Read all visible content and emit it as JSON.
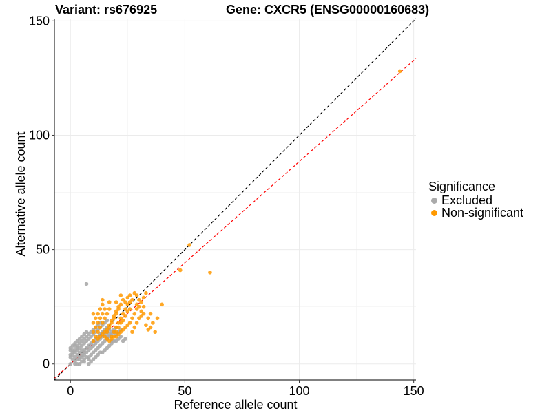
{
  "chart_data": {
    "type": "scatter",
    "title_left": "Variant: rs676925",
    "title_right": "Gene: CXCR5 (ENSG00000160683)",
    "xlabel": "Reference allele count",
    "ylabel": "Alternative allele count",
    "xlim": [
      -7,
      151
    ],
    "ylim": [
      -7,
      151
    ],
    "xticks": [
      0,
      50,
      100,
      150
    ],
    "yticks": [
      0,
      50,
      100,
      150
    ],
    "grid": true,
    "reference_lines": [
      {
        "name": "identity",
        "slope": 1,
        "intercept": 0,
        "color": "#000000",
        "dash": true
      },
      {
        "name": "ratio-fit",
        "slope": 0.885,
        "intercept": 0,
        "color": "#ff0000",
        "dash": true
      }
    ],
    "legend": {
      "title": "Significance",
      "position": "right",
      "entries": [
        {
          "label": "Excluded",
          "color": "#aaaaaa"
        },
        {
          "label": "Non-significant",
          "color": "#ff9900"
        }
      ]
    },
    "series": [
      {
        "name": "Excluded",
        "color": "#aaaaaa",
        "points": [
          [
            0,
            0
          ],
          [
            1,
            2
          ],
          [
            2,
            1
          ],
          [
            0,
            3
          ],
          [
            3,
            0
          ],
          [
            1,
            4
          ],
          [
            4,
            2
          ],
          [
            2,
            5
          ],
          [
            5,
            3
          ],
          [
            3,
            6
          ],
          [
            6,
            4
          ],
          [
            4,
            7
          ],
          [
            7,
            5
          ],
          [
            5,
            8
          ],
          [
            8,
            6
          ],
          [
            6,
            9
          ],
          [
            9,
            7
          ],
          [
            7,
            10
          ],
          [
            10,
            8
          ],
          [
            8,
            11
          ],
          [
            11,
            9
          ],
          [
            9,
            12
          ],
          [
            12,
            10
          ],
          [
            10,
            13
          ],
          [
            13,
            11
          ],
          [
            11,
            14
          ],
          [
            14,
            12
          ],
          [
            12,
            15
          ],
          [
            15,
            13
          ],
          [
            13,
            16
          ],
          [
            16,
            12
          ],
          [
            14,
            17
          ],
          [
            17,
            13
          ],
          [
            15,
            18
          ],
          [
            18,
            14
          ],
          [
            16,
            19
          ],
          [
            19,
            15
          ],
          [
            20,
            16
          ],
          [
            2,
            3
          ],
          [
            3,
            2
          ],
          [
            4,
            5
          ],
          [
            5,
            4
          ],
          [
            6,
            6
          ],
          [
            7,
            7
          ],
          [
            8,
            8
          ],
          [
            3,
            8
          ],
          [
            8,
            3
          ],
          [
            6,
            11
          ],
          [
            11,
            6
          ],
          [
            9,
            4
          ],
          [
            4,
            9
          ],
          [
            12,
            7
          ],
          [
            7,
            12
          ],
          [
            10,
            5
          ],
          [
            5,
            10
          ],
          [
            1,
            6
          ],
          [
            6,
            1
          ],
          [
            2,
            8
          ],
          [
            8,
            2
          ],
          [
            9,
            9
          ],
          [
            10,
            10
          ],
          [
            11,
            11
          ],
          [
            12,
            12
          ],
          [
            13,
            8
          ],
          [
            8,
            13
          ],
          [
            14,
            9
          ],
          [
            9,
            14
          ],
          [
            15,
            10
          ],
          [
            10,
            15
          ],
          [
            16,
            11
          ],
          [
            11,
            16
          ],
          [
            17,
            12
          ],
          [
            12,
            17
          ],
          [
            18,
            13
          ],
          [
            13,
            18
          ],
          [
            19,
            14
          ],
          [
            20,
            10
          ],
          [
            21,
            11
          ],
          [
            22,
            12
          ],
          [
            3,
            4
          ],
          [
            4,
            3
          ],
          [
            5,
            6
          ],
          [
            6,
            5
          ],
          [
            7,
            3
          ],
          [
            3,
            7
          ],
          [
            2,
            6
          ],
          [
            6,
            2
          ],
          [
            1,
            5
          ],
          [
            5,
            1
          ],
          [
            0,
            4
          ],
          [
            4,
            0
          ],
          [
            0,
            6
          ],
          [
            2,
            0
          ],
          [
            7,
            35
          ],
          [
            14,
            5
          ],
          [
            15,
            6
          ],
          [
            16,
            7
          ],
          [
            17,
            8
          ],
          [
            18,
            9
          ],
          [
            19,
            10
          ],
          [
            12,
            4
          ],
          [
            13,
            5
          ],
          [
            11,
            3
          ],
          [
            10,
            2
          ],
          [
            9,
            1
          ],
          [
            8,
            0
          ],
          [
            5,
            12
          ],
          [
            6,
            13
          ],
          [
            7,
            14
          ],
          [
            4,
            11
          ],
          [
            3,
            10
          ],
          [
            2,
            9
          ],
          [
            1,
            8
          ],
          [
            0,
            7
          ],
          [
            14,
            14
          ],
          [
            15,
            15
          ],
          [
            16,
            16
          ],
          [
            13,
            13
          ],
          [
            20,
            13
          ],
          [
            21,
            14
          ],
          [
            22,
            15
          ],
          [
            23,
            10
          ],
          [
            24,
            11
          ],
          [
            18,
            10
          ],
          [
            17,
            15
          ],
          [
            16,
            14
          ]
        ]
      },
      {
        "name": "Non-significant",
        "color": "#ff9900",
        "points": [
          [
            10,
            10
          ],
          [
            11,
            12
          ],
          [
            12,
            14
          ],
          [
            13,
            16
          ],
          [
            14,
            18
          ],
          [
            15,
            20
          ],
          [
            16,
            22
          ],
          [
            17,
            24
          ],
          [
            10,
            14
          ],
          [
            11,
            16
          ],
          [
            12,
            18
          ],
          [
            13,
            20
          ],
          [
            14,
            22
          ],
          [
            15,
            24
          ],
          [
            16,
            14
          ],
          [
            17,
            16
          ],
          [
            18,
            18
          ],
          [
            19,
            20
          ],
          [
            20,
            22
          ],
          [
            21,
            24
          ],
          [
            22,
            26
          ],
          [
            18,
            12
          ],
          [
            19,
            14
          ],
          [
            20,
            16
          ],
          [
            21,
            18
          ],
          [
            22,
            20
          ],
          [
            23,
            22
          ],
          [
            24,
            24
          ],
          [
            25,
            26
          ],
          [
            20,
            12
          ],
          [
            21,
            13
          ],
          [
            22,
            14
          ],
          [
            23,
            15
          ],
          [
            24,
            16
          ],
          [
            25,
            17
          ],
          [
            26,
            18
          ],
          [
            27,
            20
          ],
          [
            28,
            22
          ],
          [
            29,
            24
          ],
          [
            30,
            25
          ],
          [
            12,
            11
          ],
          [
            13,
            12
          ],
          [
            14,
            13
          ],
          [
            15,
            14
          ],
          [
            16,
            15
          ],
          [
            17,
            17
          ],
          [
            18,
            19
          ],
          [
            19,
            21
          ],
          [
            20,
            23
          ],
          [
            21,
            25
          ],
          [
            11,
            20
          ],
          [
            12,
            22
          ],
          [
            13,
            24
          ],
          [
            14,
            26
          ],
          [
            10,
            18
          ],
          [
            10,
            22
          ],
          [
            15,
            12
          ],
          [
            16,
            11
          ],
          [
            17,
            10
          ],
          [
            18,
            11
          ],
          [
            19,
            12
          ],
          [
            20,
            14
          ],
          [
            21,
            16
          ],
          [
            22,
            18
          ],
          [
            23,
            19
          ],
          [
            24,
            21
          ],
          [
            25,
            23
          ],
          [
            26,
            24
          ],
          [
            27,
            14
          ],
          [
            28,
            16
          ],
          [
            29,
            18
          ],
          [
            30,
            20
          ],
          [
            31,
            21
          ],
          [
            32,
            22
          ],
          [
            33,
            17
          ],
          [
            34,
            15
          ],
          [
            35,
            16
          ],
          [
            36,
            18
          ],
          [
            38,
            20
          ],
          [
            40,
            26
          ],
          [
            31,
            27
          ],
          [
            32,
            29
          ],
          [
            33,
            31
          ],
          [
            27,
            28
          ],
          [
            28,
            31
          ],
          [
            29,
            30
          ],
          [
            30,
            28
          ],
          [
            24,
            27
          ],
          [
            23,
            28
          ],
          [
            22,
            30
          ],
          [
            26,
            30
          ],
          [
            25,
            29
          ],
          [
            20,
            27
          ],
          [
            17,
            27
          ],
          [
            14,
            28
          ],
          [
            31,
            23
          ],
          [
            32,
            25
          ],
          [
            29,
            26
          ],
          [
            26,
            27
          ],
          [
            37,
            14
          ],
          [
            34,
            20
          ],
          [
            35,
            22
          ],
          [
            52,
            52
          ],
          [
            48,
            41
          ],
          [
            61,
            40
          ],
          [
            144,
            128
          ]
        ]
      }
    ]
  }
}
